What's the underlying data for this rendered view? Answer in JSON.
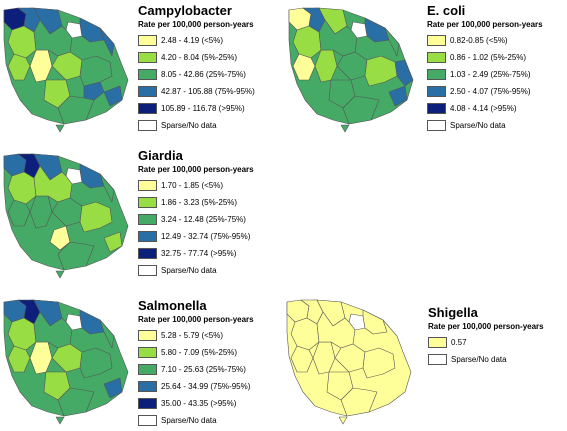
{
  "panels": [
    {
      "title": "Campylobacter",
      "subtitle": "Rate per 100,000 person-years",
      "legend": [
        {
          "label": "2.48 - 4.19 (<5%)",
          "color": "#ffff99"
        },
        {
          "label": "4.20 - 8.04 (5%-25%)",
          "color": "#99dd44"
        },
        {
          "label": "8.05 - 42.86 (25%-75%)",
          "color": "#44aa66"
        },
        {
          "label": "42.87 - 105.88 (75%-95%)",
          "color": "#2a6ea6"
        },
        {
          "label": "105.89 - 116.78 (>95%)",
          "color": "#0c1f7a"
        },
        {
          "label": "Sparse/No data",
          "color": "#ffffff"
        }
      ]
    },
    {
      "title": "E. coli",
      "subtitle": "Rate per 100,000 person-years",
      "legend": [
        {
          "label": "0.82-0.85 (<5%)",
          "color": "#ffff99"
        },
        {
          "label": "0.86 - 1.02 (5%-25%)",
          "color": "#99dd44"
        },
        {
          "label": "1.03 - 2.49 (25%-75%)",
          "color": "#44aa66"
        },
        {
          "label": "2.50 - 4.07 (75%-95%)",
          "color": "#2a6ea6"
        },
        {
          "label": "4.08 - 4.14 (>95%)",
          "color": "#0c1f7a"
        },
        {
          "label": "Sparse/No data",
          "color": "#ffffff"
        }
      ]
    },
    {
      "title": "Giardia",
      "subtitle": "Rate per 100,000 person-years",
      "legend": [
        {
          "label": "1.70 - 1.85 (<5%)",
          "color": "#ffff99"
        },
        {
          "label": "1.86 - 3.23 (5%-25%)",
          "color": "#99dd44"
        },
        {
          "label": "3.24 - 12.48 (25%-75%)",
          "color": "#44aa66"
        },
        {
          "label": "12.49 - 32.74 (75%-95%)",
          "color": "#2a6ea6"
        },
        {
          "label": "32.75 - 77.74 (>95%)",
          "color": "#0c1f7a"
        },
        {
          "label": "Sparse/No data",
          "color": "#ffffff"
        }
      ]
    },
    {
      "title": "Salmonella",
      "subtitle": "Rate per 100,000 person-years",
      "legend": [
        {
          "label": "5.28 - 5.79 (<5%)",
          "color": "#ffff99"
        },
        {
          "label": "5.80 - 7.09 (5%-25%)",
          "color": "#99dd44"
        },
        {
          "label": "7.10 - 25.63 (25%-75%)",
          "color": "#44aa66"
        },
        {
          "label": "25.64 - 34.99 (75%-95%)",
          "color": "#2a6ea6"
        },
        {
          "label": "35.00 - 43.35 (>95%)",
          "color": "#0c1f7a"
        },
        {
          "label": "Sparse/No data",
          "color": "#ffffff"
        }
      ]
    },
    {
      "title": "Shigella",
      "subtitle": "Rate per 100,000 person-years",
      "legend": [
        {
          "label": "0.57",
          "color": "#ffff99"
        },
        {
          "label": "Sparse/No data",
          "color": "#ffffff"
        }
      ]
    }
  ]
}
